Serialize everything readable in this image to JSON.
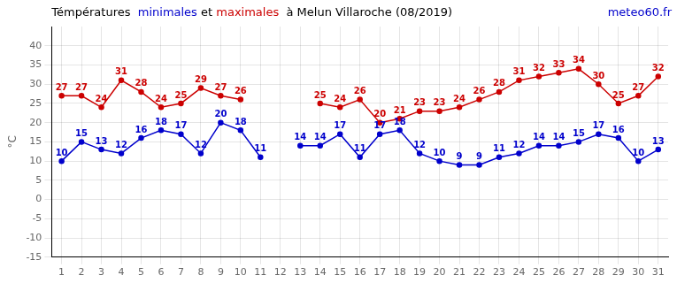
{
  "chart_data": {
    "type": "line",
    "title": "Témpératures  minimales et maximales  à Melun Villaroche (08/2019)",
    "ylabel": "°C",
    "annotations": [
      {
        "text": "meteo60.fr",
        "color": "#0000cc"
      }
    ],
    "x": [
      1,
      2,
      3,
      4,
      5,
      6,
      7,
      8,
      9,
      10,
      11,
      12,
      13,
      14,
      15,
      16,
      17,
      18,
      19,
      20,
      21,
      22,
      23,
      24,
      25,
      26,
      27,
      28,
      29,
      30,
      31
    ],
    "series": [
      {
        "name": "minimales",
        "color": "#0000cc",
        "marker": "circle",
        "values": [
          10,
          15,
          13,
          12,
          16,
          18,
          17,
          12,
          20,
          18,
          11,
          null,
          14,
          14,
          17,
          11,
          17,
          18,
          12,
          10,
          9,
          9,
          11,
          12,
          14,
          14,
          15,
          17,
          16,
          10,
          13
        ]
      },
      {
        "name": "maximales",
        "color": "#cc0000",
        "marker": "circle",
        "values": [
          27,
          27,
          24,
          31,
          28,
          24,
          25,
          29,
          27,
          26,
          null,
          null,
          null,
          25,
          24,
          26,
          20,
          21,
          23,
          23,
          24,
          26,
          28,
          31,
          32,
          33,
          34,
          30,
          25,
          27,
          32
        ]
      }
    ],
    "xlim": [
      0.5,
      31.5
    ],
    "xticks": [
      1,
      2,
      3,
      4,
      5,
      6,
      7,
      8,
      9,
      10,
      11,
      12,
      13,
      14,
      15,
      16,
      17,
      18,
      19,
      20,
      21,
      22,
      23,
      24,
      25,
      26,
      27,
      28,
      29,
      30,
      31
    ],
    "ylim": [
      -15,
      45
    ],
    "yticks": [
      -15,
      -10,
      -5,
      0,
      5,
      10,
      15,
      20,
      25,
      30,
      35,
      40
    ],
    "grid": true,
    "data_labels": true
  }
}
